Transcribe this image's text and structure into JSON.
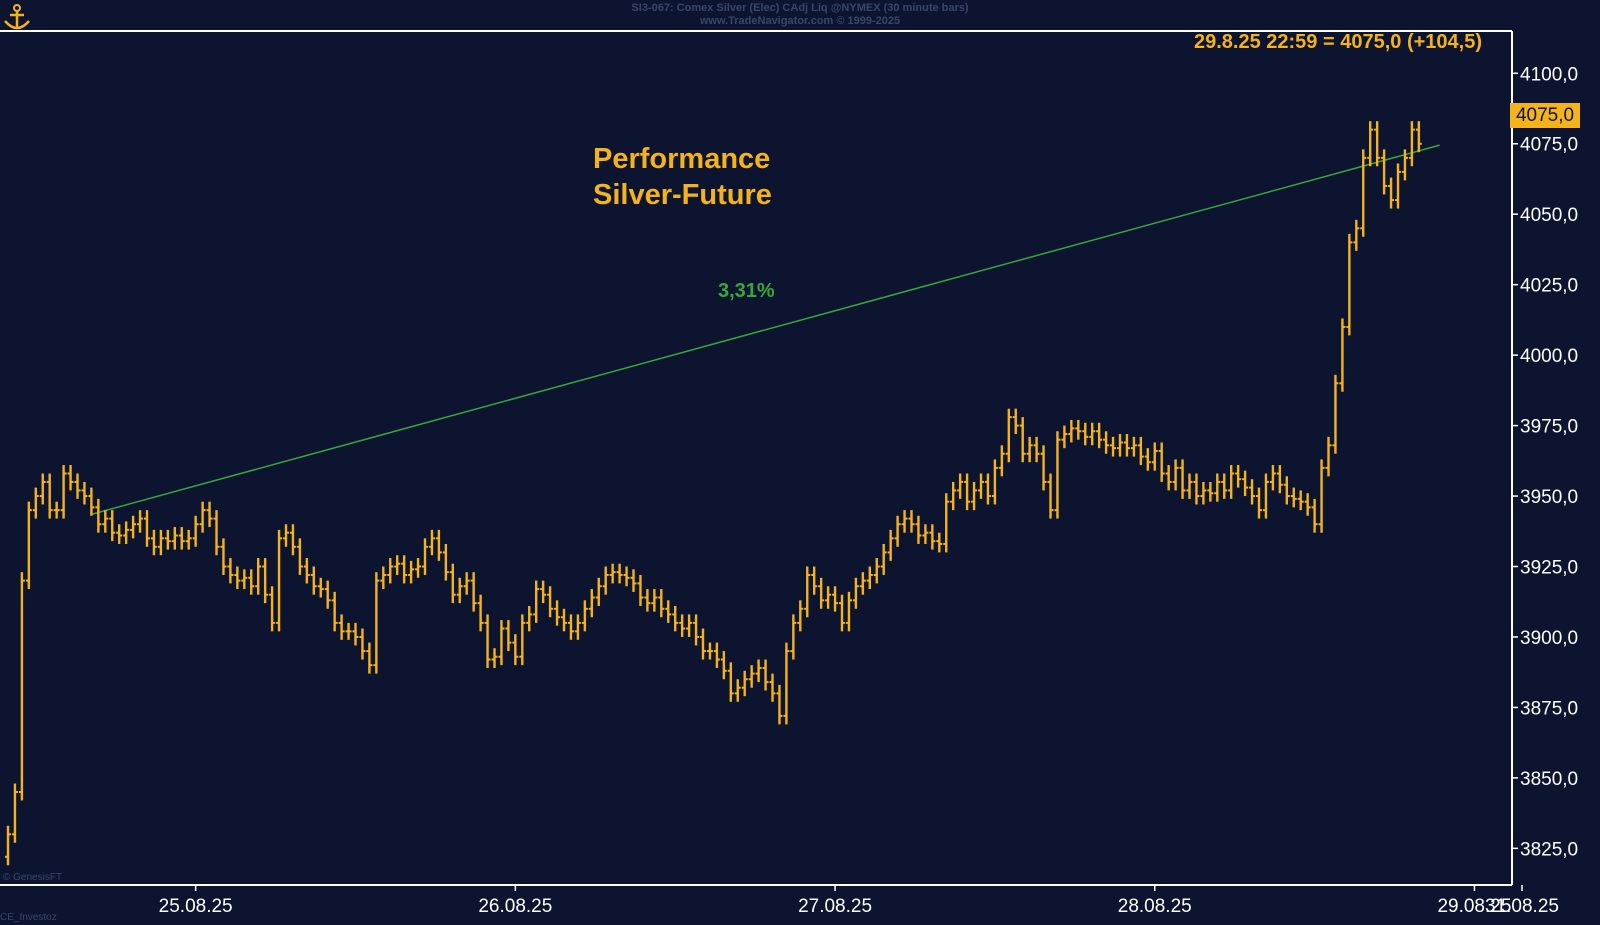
{
  "header": {
    "line1": "SI3-067:  Comex Silver (Elec) CAdj Liq @NYMEX  (30 minute bars)",
    "line2": "www.TradeNavigator.com © 1999-2025"
  },
  "last_quote": "29.8.25 22:59 = 4075,0 (+104,5)",
  "price_tag": "4075,0",
  "footer": {
    "left_top": "© GenesisFT",
    "left_bottom": "CE_Investoz"
  },
  "colors": {
    "background": "#0c1430",
    "bars": "#f5b31b",
    "trendline": "#3aa63a",
    "axis": "#ffffff"
  },
  "chart_data": {
    "type": "ohlc-bar",
    "title": "Performance Silver-Future",
    "title_lines": [
      "Performance",
      "Silver-Future"
    ],
    "ylim": [
      3812,
      4115
    ],
    "y_ticks": [
      3825,
      3850,
      3875,
      3900,
      3925,
      3950,
      3975,
      4000,
      4025,
      4050,
      4075,
      4100
    ],
    "y_tick_labels": [
      "3825,0",
      "3850,0",
      "3875,0",
      "3900,0",
      "3925,0",
      "3950,0",
      "3975,0",
      "4000,0",
      "4025,0",
      "4050,0",
      "4075,0",
      "4100,0"
    ],
    "x_ticks": [
      "25.08.25",
      "26.08.25",
      "27.08.25",
      "28.08.25",
      "29.08.25",
      "31.08.25"
    ],
    "bars_per_day": 46,
    "series": [
      {
        "values": [
          3830,
          3845,
          3920,
          3945,
          3950,
          3955,
          3945,
          3945,
          3958,
          3955,
          3952,
          3950,
          3946,
          3940,
          3942,
          3937,
          3936,
          3938,
          3940,
          3942,
          3935,
          3932,
          3935,
          3934,
          3936,
          3934,
          3935,
          3940,
          3945,
          3942,
          3932,
          3925,
          3922,
          3920,
          3921,
          3918,
          3925,
          3915,
          3905,
          3935,
          3937,
          3932,
          3925,
          3922,
          3918,
          3917,
          3913,
          3905,
          3902,
          3902,
          3900,
          3895,
          3890,
          3920,
          3922,
          3925,
          3926,
          3922,
          3924,
          3925,
          3932,
          3935,
          3930,
          3923,
          3915,
          3918,
          3920,
          3912,
          3905,
          3892,
          3893,
          3903,
          3898,
          3893,
          3905,
          3908,
          3917,
          3915,
          3910,
          3907,
          3905,
          3902,
          3905,
          3910,
          3914,
          3918,
          3922,
          3923,
          3922,
          3921,
          3919,
          3914,
          3912,
          3914,
          3910,
          3908,
          3905,
          3903,
          3905,
          3900,
          3895,
          3895,
          3892,
          3888,
          3880,
          3882,
          3885,
          3887,
          3889,
          3884,
          3880,
          3872,
          3895,
          3905,
          3910,
          3922,
          3918,
          3913,
          3915,
          3912,
          3905,
          3913,
          3918,
          3920,
          3922,
          3925,
          3930,
          3935,
          3940,
          3942,
          3940,
          3936,
          3937,
          3934,
          3933,
          3948,
          3952,
          3955,
          3948,
          3952,
          3955,
          3950,
          3960,
          3965,
          3978,
          3975,
          3965,
          3968,
          3965,
          3955,
          3945,
          3970,
          3972,
          3974,
          3973,
          3971,
          3973,
          3970,
          3968,
          3967,
          3969,
          3967,
          3968,
          3964,
          3962,
          3966,
          3958,
          3955,
          3960,
          3952,
          3955,
          3950,
          3952,
          3951,
          3955,
          3952,
          3958,
          3956,
          3953,
          3950,
          3945,
          3955,
          3958,
          3954,
          3950,
          3949,
          3948,
          3946,
          3940,
          3960,
          3968,
          3990,
          4010,
          4040,
          4045,
          4070,
          4080,
          4070,
          4060,
          4055,
          4065,
          4070,
          4080,
          4075
        ]
      }
    ],
    "trendline": {
      "from_bar": 12,
      "from_value": 3943.5,
      "to_bar": 206,
      "to_value": 4074.5
    },
    "annotations": [
      {
        "text": "3,31%"
      }
    ],
    "grid": false,
    "legend": "none"
  }
}
